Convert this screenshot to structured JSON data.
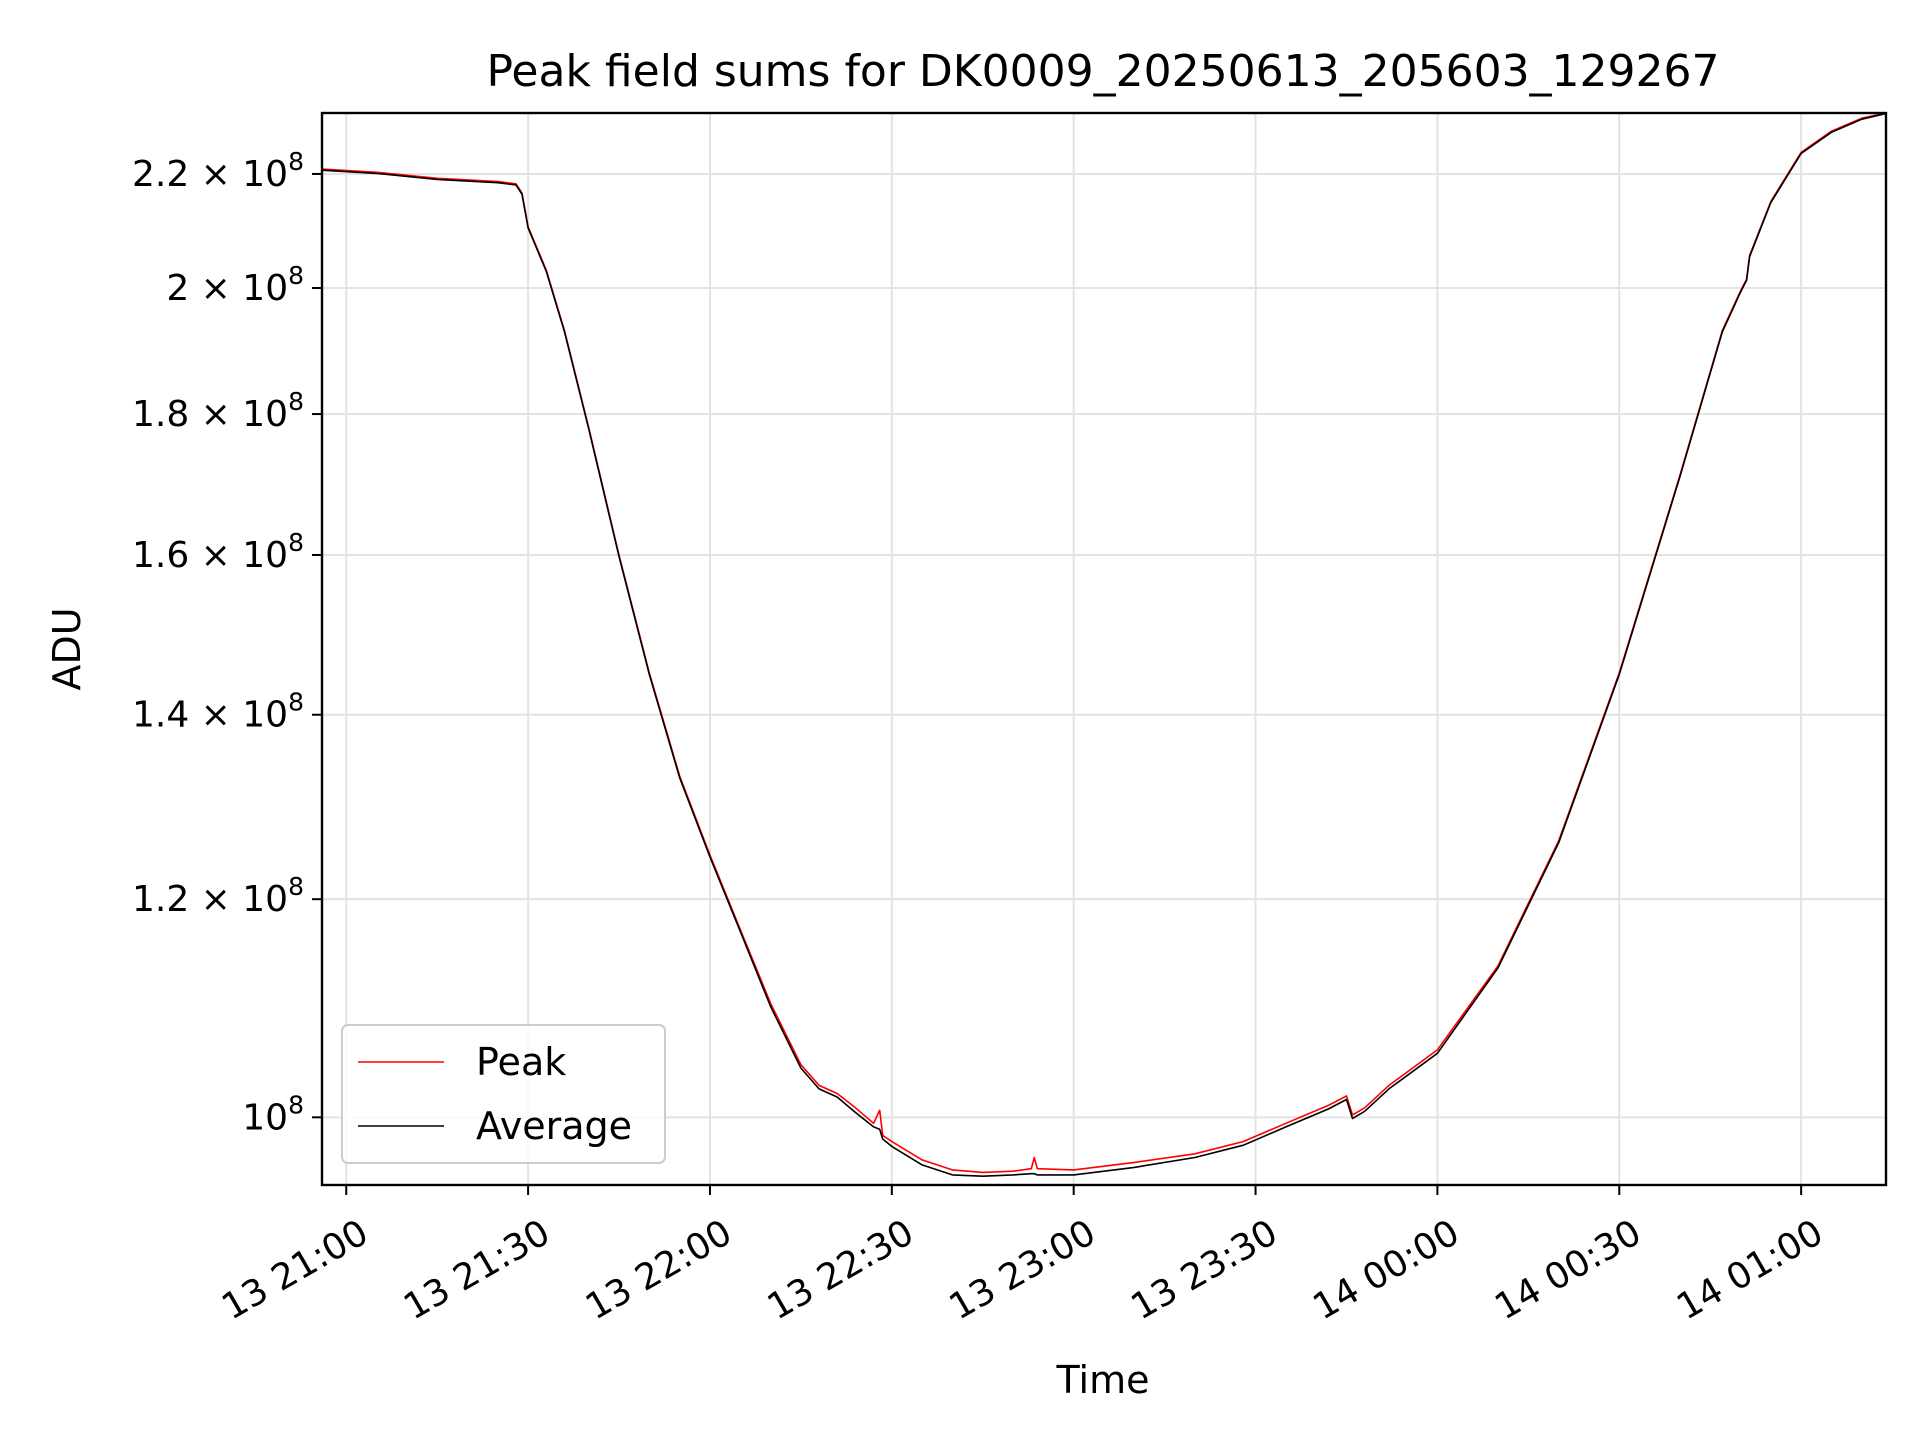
{
  "chart_data": {
    "type": "line",
    "title": "Peak field sums for DK0009_20250613_205603_129267",
    "xlabel": "Time",
    "ylabel": "ADU",
    "yscale": "log",
    "grid": true,
    "legend_position": "lower-left",
    "xlim": [
      "2025-06-13 20:56",
      "2025-06-14 01:14"
    ],
    "ylim": [
      94500000,
      231500000
    ],
    "x_ticks": [
      {
        "t": "2025-06-13 21:00",
        "label": "13 21:00"
      },
      {
        "t": "2025-06-13 21:30",
        "label": "13 21:30"
      },
      {
        "t": "2025-06-13 22:00",
        "label": "13 22:00"
      },
      {
        "t": "2025-06-13 22:30",
        "label": "13 22:30"
      },
      {
        "t": "2025-06-13 23:00",
        "label": "13 23:00"
      },
      {
        "t": "2025-06-13 23:30",
        "label": "13 23:30"
      },
      {
        "t": "2025-06-14 00:00",
        "label": "14 00:00"
      },
      {
        "t": "2025-06-14 00:30",
        "label": "14 00:30"
      },
      {
        "t": "2025-06-14 01:00",
        "label": "14 01:00"
      }
    ],
    "y_ticks": [
      {
        "value": 100000000,
        "mantissa": "",
        "exp": "8"
      },
      {
        "value": 120000000,
        "mantissa": "1.2 × ",
        "exp": "8"
      },
      {
        "value": 140000000,
        "mantissa": "1.4 × ",
        "exp": "8"
      },
      {
        "value": 160000000,
        "mantissa": "1.6 × ",
        "exp": "8"
      },
      {
        "value": 180000000,
        "mantissa": "1.8 × ",
        "exp": "8"
      },
      {
        "value": 200000000,
        "mantissa": "2 × ",
        "exp": "8"
      },
      {
        "value": 220000000,
        "mantissa": "2.2 × ",
        "exp": "8"
      }
    ],
    "series": [
      {
        "name": "Peak",
        "color": "#ff0000",
        "points": [
          [
            "2025-06-13 20:56",
            220900000
          ],
          [
            "2025-06-13 21:05",
            220300000
          ],
          [
            "2025-06-13 21:15",
            219200000
          ],
          [
            "2025-06-13 21:25",
            218600000
          ],
          [
            "2025-06-13 21:28",
            218200000
          ],
          [
            "2025-06-13 21:29",
            216500000
          ],
          [
            "2025-06-13 21:30",
            210500000
          ],
          [
            "2025-06-13 21:33",
            203000000
          ],
          [
            "2025-06-13 21:36",
            193000000
          ],
          [
            "2025-06-13 21:40",
            178000000
          ],
          [
            "2025-06-13 21:45",
            160000000
          ],
          [
            "2025-06-13 21:50",
            145000000
          ],
          [
            "2025-06-13 21:55",
            133000000
          ],
          [
            "2025-06-13 22:00",
            124500000
          ],
          [
            "2025-06-13 22:05",
            117000000
          ],
          [
            "2025-06-13 22:10",
            110000000
          ],
          [
            "2025-06-13 22:15",
            104500000
          ],
          [
            "2025-06-13 22:18",
            102700000
          ],
          [
            "2025-06-13 22:21",
            102000000
          ],
          [
            "2025-06-13 22:24",
            100800000
          ],
          [
            "2025-06-13 22:27",
            99500000
          ],
          [
            "2025-06-13 22:28",
            100600000
          ],
          [
            "2025-06-13 22:28.5",
            98500000
          ],
          [
            "2025-06-13 22:30",
            98000000
          ],
          [
            "2025-06-13 22:35",
            96500000
          ],
          [
            "2025-06-13 22:40",
            95700000
          ],
          [
            "2025-06-13 22:45",
            95500000
          ],
          [
            "2025-06-13 22:50",
            95600000
          ],
          [
            "2025-06-13 22:53",
            95800000
          ],
          [
            "2025-06-13 22:53.5",
            96700000
          ],
          [
            "2025-06-13 22:54",
            95800000
          ],
          [
            "2025-06-13 23:00",
            95700000
          ],
          [
            "2025-06-13 23:10",
            96300000
          ],
          [
            "2025-06-13 23:20",
            97000000
          ],
          [
            "2025-06-13 23:28",
            98000000
          ],
          [
            "2025-06-13 23:35",
            99500000
          ],
          [
            "2025-06-13 23:42",
            101000000
          ],
          [
            "2025-06-13 23:45",
            101800000
          ],
          [
            "2025-06-13 23:46",
            100200000
          ],
          [
            "2025-06-13 23:48",
            100800000
          ],
          [
            "2025-06-13 23:52",
            102700000
          ],
          [
            "2025-06-13 24:00",
            105800000
          ],
          [
            "2025-06-14 00:10",
            113500000
          ],
          [
            "2025-06-14 00:20",
            126000000
          ],
          [
            "2025-06-14 00:30",
            145000000
          ],
          [
            "2025-06-14 00:40",
            171000000
          ],
          [
            "2025-06-14 00:47",
            193000000
          ],
          [
            "2025-06-14 00:50",
            199500000
          ],
          [
            "2025-06-14 00:51",
            201500000
          ],
          [
            "2025-06-14 00:51.5",
            205500000
          ],
          [
            "2025-06-14 00:55",
            215000000
          ],
          [
            "2025-06-14 01:00",
            224000000
          ],
          [
            "2025-06-14 01:05",
            228000000
          ],
          [
            "2025-06-14 01:10",
            230500000
          ],
          [
            "2025-06-14 01:14",
            231500000
          ]
        ]
      },
      {
        "name": "Average",
        "color": "#000000",
        "points": [
          [
            "2025-06-13 20:56",
            220700000
          ],
          [
            "2025-06-13 21:05",
            220100000
          ],
          [
            "2025-06-13 21:15",
            219000000
          ],
          [
            "2025-06-13 21:25",
            218400000
          ],
          [
            "2025-06-13 21:28",
            218000000
          ],
          [
            "2025-06-13 21:29",
            216300000
          ],
          [
            "2025-06-13 21:30",
            210300000
          ],
          [
            "2025-06-13 21:33",
            202800000
          ],
          [
            "2025-06-13 21:36",
            192800000
          ],
          [
            "2025-06-13 21:40",
            177800000
          ],
          [
            "2025-06-13 21:45",
            159800000
          ],
          [
            "2025-06-13 21:50",
            144800000
          ],
          [
            "2025-06-13 21:55",
            132800000
          ],
          [
            "2025-06-13 22:00",
            124300000
          ],
          [
            "2025-06-13 22:05",
            116800000
          ],
          [
            "2025-06-13 22:10",
            109700000
          ],
          [
            "2025-06-13 22:15",
            104200000
          ],
          [
            "2025-06-13 22:18",
            102400000
          ],
          [
            "2025-06-13 22:21",
            101700000
          ],
          [
            "2025-06-13 22:24",
            100400000
          ],
          [
            "2025-06-13 22:27",
            99200000
          ],
          [
            "2025-06-13 22:28",
            99000000
          ],
          [
            "2025-06-13 22:28.5",
            98200000
          ],
          [
            "2025-06-13 22:30",
            97600000
          ],
          [
            "2025-06-13 22:35",
            96100000
          ],
          [
            "2025-06-13 22:40",
            95300000
          ],
          [
            "2025-06-13 22:45",
            95200000
          ],
          [
            "2025-06-13 22:50",
            95300000
          ],
          [
            "2025-06-13 22:53",
            95400000
          ],
          [
            "2025-06-13 22:53.5",
            95400000
          ],
          [
            "2025-06-13 22:54",
            95300000
          ],
          [
            "2025-06-13 23:00",
            95300000
          ],
          [
            "2025-06-13 23:10",
            95900000
          ],
          [
            "2025-06-13 23:20",
            96700000
          ],
          [
            "2025-06-13 23:28",
            97700000
          ],
          [
            "2025-06-13 23:35",
            99200000
          ],
          [
            "2025-06-13 23:42",
            100700000
          ],
          [
            "2025-06-13 23:45",
            101500000
          ],
          [
            "2025-06-13 23:46",
            99900000
          ],
          [
            "2025-06-13 23:48",
            100500000
          ],
          [
            "2025-06-13 23:52",
            102400000
          ],
          [
            "2025-06-13 24:00",
            105500000
          ],
          [
            "2025-06-14 00:10",
            113300000
          ],
          [
            "2025-06-14 00:20",
            125800000
          ],
          [
            "2025-06-14 00:30",
            144800000
          ],
          [
            "2025-06-14 00:40",
            170800000
          ],
          [
            "2025-06-14 00:47",
            192800000
          ],
          [
            "2025-06-14 00:50",
            199300000
          ],
          [
            "2025-06-14 00:51",
            201300000
          ],
          [
            "2025-06-14 00:51.5",
            205300000
          ],
          [
            "2025-06-14 00:55",
            214800000
          ],
          [
            "2025-06-14 01:00",
            223800000
          ],
          [
            "2025-06-14 01:05",
            227800000
          ],
          [
            "2025-06-14 01:10",
            230300000
          ],
          [
            "2025-06-14 01:14",
            231400000
          ]
        ]
      }
    ]
  }
}
